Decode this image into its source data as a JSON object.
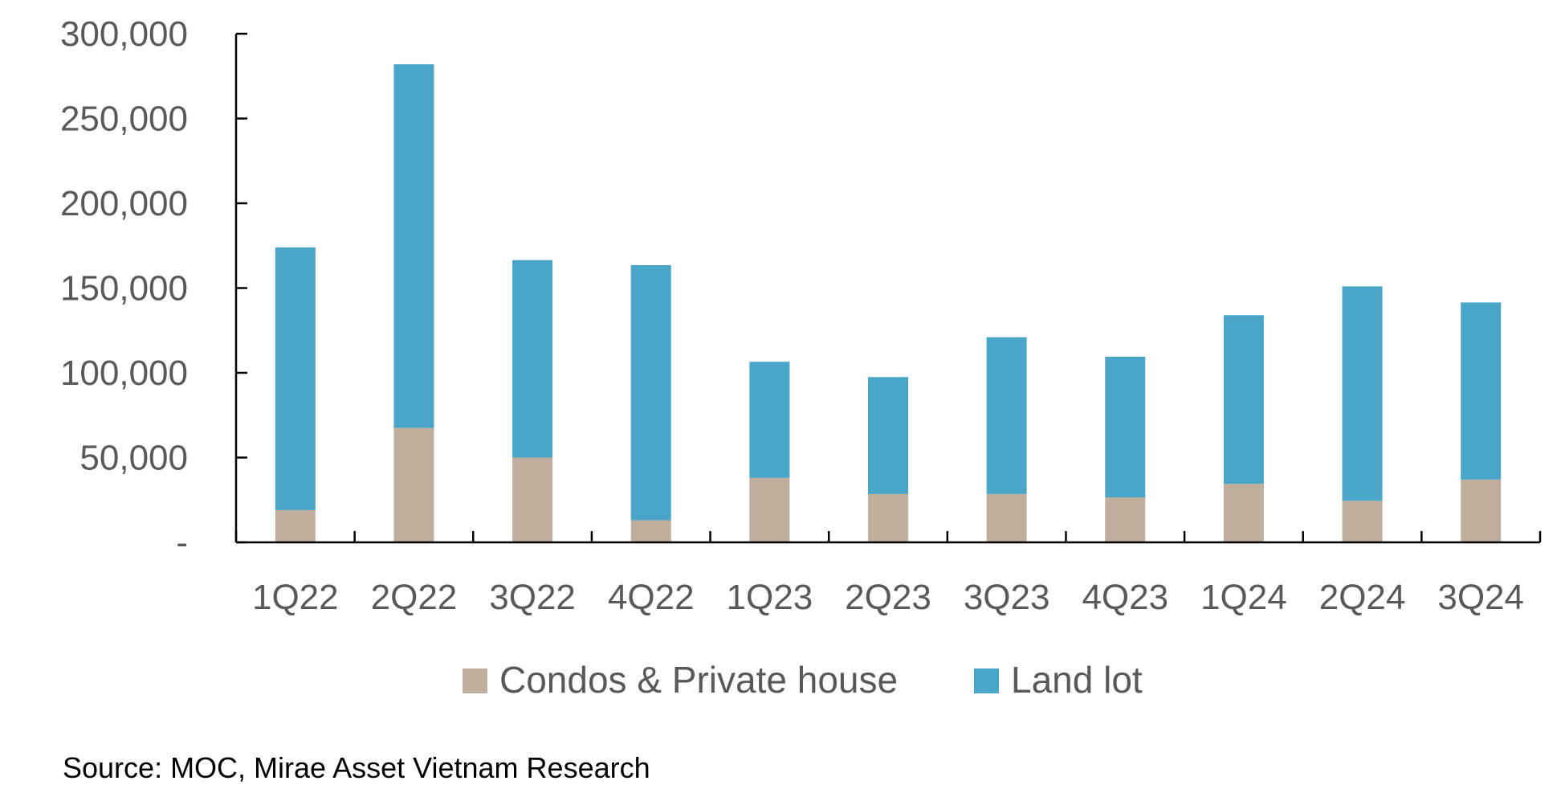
{
  "chart_data": {
    "type": "bar",
    "stacked": true,
    "categories": [
      "1Q22",
      "2Q22",
      "3Q22",
      "4Q22",
      "1Q23",
      "2Q23",
      "3Q23",
      "4Q23",
      "1Q24",
      "2Q24",
      "3Q24"
    ],
    "series": [
      {
        "name": "Condos & Private house",
        "color": "#bfae9b",
        "values": [
          19000,
          67500,
          50000,
          13000,
          38000,
          28500,
          28500,
          26500,
          34500,
          24500,
          37000
        ]
      },
      {
        "name": "Land lot",
        "color": "#4aa6c9",
        "values": [
          155000,
          214500,
          116500,
          150500,
          68500,
          69000,
          92500,
          83000,
          99500,
          126500,
          104500
        ]
      }
    ],
    "ylim": [
      0,
      300000
    ],
    "y_ticks": [
      0,
      50000,
      100000,
      150000,
      200000,
      250000,
      300000
    ],
    "y_tick_labels": [
      "-",
      "50,000",
      "100,000",
      "150,000",
      "200,000",
      "250,000",
      "300,000"
    ],
    "grid": false,
    "legend_position": "bottom"
  },
  "source": "Source: MOC, Mirae Asset Vietnam Research"
}
